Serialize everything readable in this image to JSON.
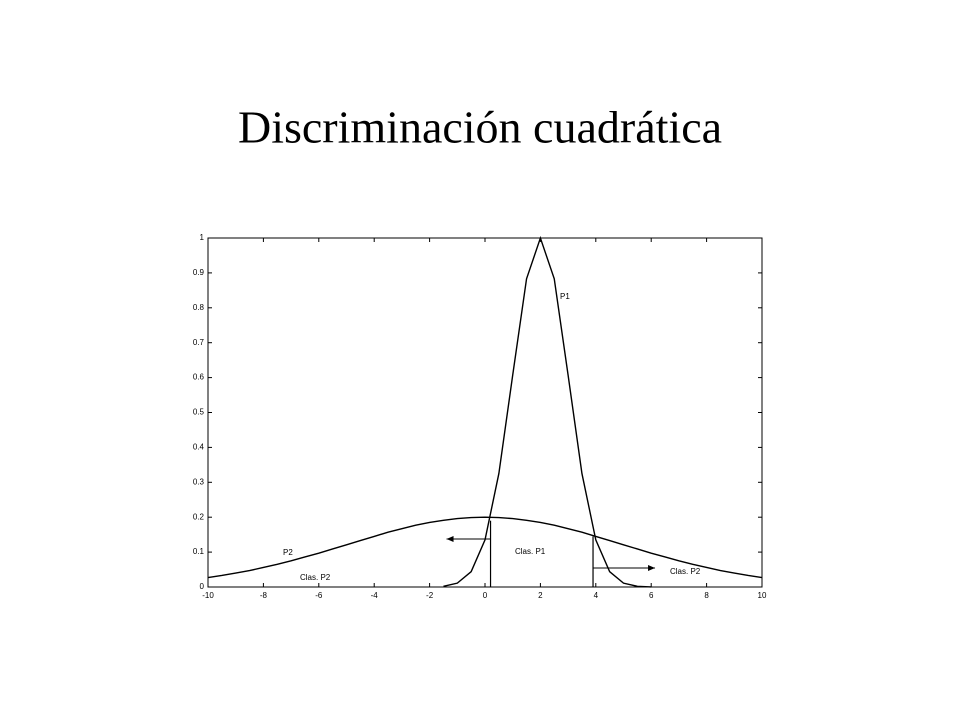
{
  "title": "Discriminación cuadrática",
  "chart_data": {
    "type": "line",
    "x": [
      -10,
      -9.5,
      -9,
      -8.5,
      -8,
      -7.5,
      -7,
      -6.5,
      -6,
      -5.5,
      -5,
      -4.5,
      -4,
      -3.5,
      -3,
      -2.5,
      -2,
      -1.5,
      -1,
      -0.5,
      0,
      0.5,
      1,
      1.5,
      2,
      2.5,
      3,
      3.5,
      4,
      4.5,
      5,
      5.5,
      6,
      6.5,
      7,
      7.5,
      8,
      8.5,
      9,
      9.5,
      10
    ],
    "series": [
      {
        "name": "P1",
        "color": "#000000",
        "values": [
          null,
          null,
          null,
          null,
          null,
          null,
          null,
          null,
          null,
          null,
          null,
          null,
          null,
          null,
          null,
          null,
          null,
          0.002,
          0.011,
          0.044,
          0.135,
          0.325,
          0.607,
          0.883,
          1,
          0.883,
          0.607,
          0.325,
          0.135,
          0.044,
          0.011,
          0.002,
          0.0003,
          null,
          null,
          null,
          null,
          null,
          null,
          null,
          null
        ]
      },
      {
        "name": "P2",
        "color": "#000000",
        "values": [
          0.027,
          0.033,
          0.04,
          0.047,
          0.056,
          0.065,
          0.075,
          0.086,
          0.097,
          0.109,
          0.121,
          0.133,
          0.145,
          0.157,
          0.167,
          0.177,
          0.185,
          0.191,
          0.196,
          0.199,
          0.2,
          0.199,
          0.196,
          0.191,
          0.185,
          0.177,
          0.167,
          0.157,
          0.145,
          0.133,
          0.121,
          0.109,
          0.097,
          0.086,
          0.075,
          0.065,
          0.056,
          0.047,
          0.04,
          0.033,
          0.027
        ]
      }
    ],
    "boundaries": [
      {
        "x": 0.2,
        "y": 0.19
      },
      {
        "x": 3.9,
        "y": 0.145
      }
    ],
    "annotations": [
      "Clas. P1",
      "Clas. P2",
      "Clas. P2"
    ],
    "xlim": [
      -10,
      10
    ],
    "xticks": [
      -10,
      -8,
      -6,
      -4,
      -2,
      0,
      2,
      4,
      6,
      8,
      10
    ],
    "ylim": [
      0,
      1
    ],
    "yticks": [
      0,
      0.1,
      0.2,
      0.3,
      0.4,
      0.5,
      0.6,
      0.7,
      0.8,
      0.9,
      1
    ],
    "grid": false
  }
}
